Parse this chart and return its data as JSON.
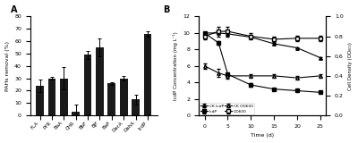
{
  "panel_A": {
    "categories": [
      "FLA",
      "PYR",
      "BaA",
      "CHR",
      "BbF",
      "BjF",
      "BaP",
      "DacA",
      "DahA",
      "IcdP"
    ],
    "values": [
      24,
      30,
      30,
      3,
      49,
      55,
      26,
      30,
      13,
      66
    ],
    "errors": [
      5,
      1,
      9,
      6,
      3,
      7,
      1,
      2,
      4,
      2
    ],
    "bar_color": "#1a1a1a",
    "ylabel": "PAHs removal (%)",
    "ylim": [
      0,
      80
    ],
    "yticks": [
      0,
      10,
      20,
      30,
      40,
      50,
      60,
      70,
      80
    ],
    "label": "A"
  },
  "panel_B": {
    "time": [
      0,
      3,
      5,
      10,
      15,
      20,
      25
    ],
    "CK_IcdP": [
      10.0,
      10.0,
      9.9,
      9.5,
      8.7,
      8.2,
      7.0
    ],
    "IcdP": [
      10.0,
      8.8,
      5.0,
      3.7,
      3.2,
      3.0,
      2.8
    ],
    "CK_OD600": [
      0.5,
      0.43,
      0.4,
      0.4,
      0.4,
      0.38,
      0.4
    ],
    "OD600": [
      0.8,
      0.85,
      0.85,
      0.8,
      0.77,
      0.78,
      0.78
    ],
    "CK_IcdP_err": [
      0.15,
      0.1,
      0.1,
      0.1,
      0.1,
      0.1,
      0.1
    ],
    "IcdP_err": [
      0.1,
      0.2,
      0.15,
      0.2,
      0.1,
      0.1,
      0.05
    ],
    "CK_OD600_err": [
      0.03,
      0.04,
      0.03,
      0.02,
      0.02,
      0.02,
      0.02
    ],
    "OD600_err": [
      0.03,
      0.05,
      0.05,
      0.03,
      0.03,
      0.03,
      0.03
    ],
    "ylabel_left": "IcdP Concentration (mg L⁻¹)",
    "ylabel_right": "Cell Density (OD₆₀₀)",
    "xlabel": "Time (d)",
    "ylim_left": [
      0,
      12
    ],
    "ylim_right": [
      0,
      1
    ],
    "yticks_left": [
      0,
      2,
      4,
      6,
      8,
      10,
      12
    ],
    "yticks_right": [
      0,
      0.2,
      0.4,
      0.6,
      0.8,
      1.0
    ],
    "xticks": [
      0,
      5,
      10,
      15,
      20,
      25
    ],
    "label": "B"
  }
}
